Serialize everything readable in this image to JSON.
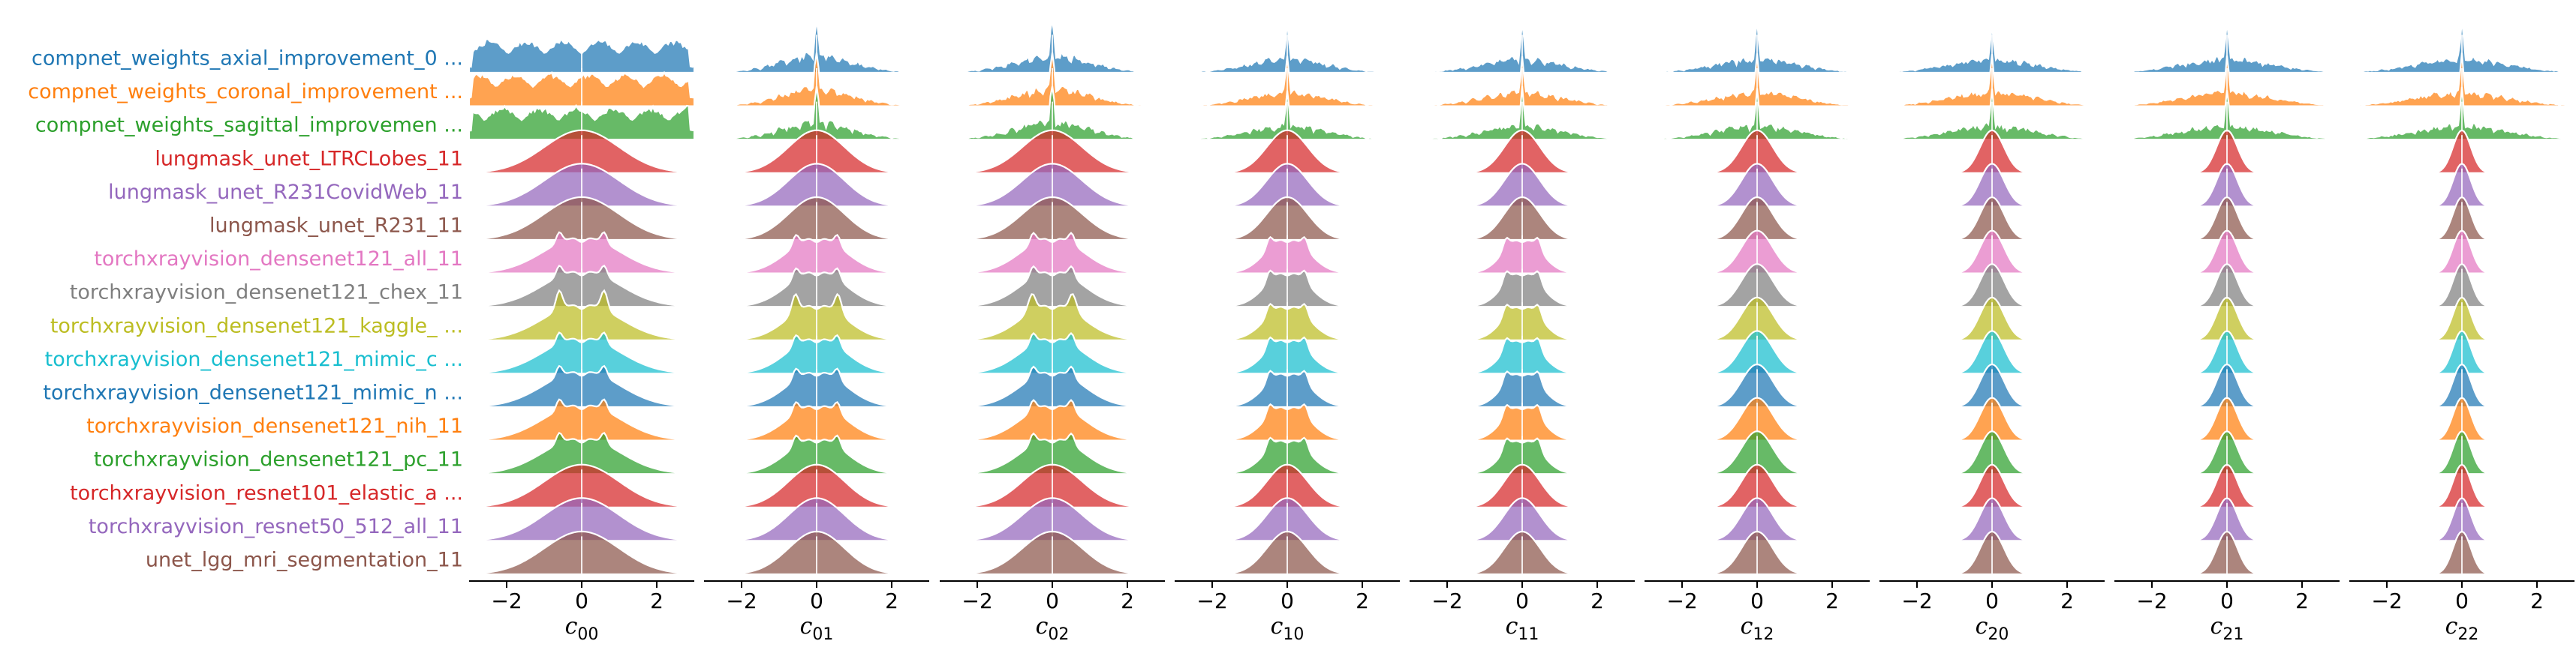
{
  "chart_data": {
    "type": "ridgeline",
    "xlim": [
      -3,
      3
    ],
    "x_ticks": [
      -2,
      0,
      2
    ],
    "x_tick_labels": [
      "−2",
      "0",
      "2"
    ],
    "panels": [
      {
        "symbol": "c",
        "sub": "00"
      },
      {
        "symbol": "c",
        "sub": "01"
      },
      {
        "symbol": "c",
        "sub": "02"
      },
      {
        "symbol": "c",
        "sub": "10"
      },
      {
        "symbol": "c",
        "sub": "11"
      },
      {
        "symbol": "c",
        "sub": "12"
      },
      {
        "symbol": "c",
        "sub": "20"
      },
      {
        "symbol": "c",
        "sub": "21"
      },
      {
        "symbol": "c",
        "sub": "22"
      }
    ],
    "series": [
      {
        "name": "compnet_weights_axial_improvement_0 ...",
        "color": "#1f77b4"
      },
      {
        "name": "compnet_weights_coronal_improvement ...",
        "color": "#ff7f0e"
      },
      {
        "name": "compnet_weights_sagittal_improvemen ...",
        "color": "#2ca02c"
      },
      {
        "name": "lungmask_unet_LTRCLobes_11",
        "color": "#d62728"
      },
      {
        "name": "lungmask_unet_R231CovidWeb_11",
        "color": "#9467bd"
      },
      {
        "name": "lungmask_unet_R231_11",
        "color": "#8c564b"
      },
      {
        "name": "torchxrayvision_densenet121_all_11",
        "color": "#e377c2"
      },
      {
        "name": "torchxrayvision_densenet121_chex_11",
        "color": "#7f7f7f"
      },
      {
        "name": "torchxrayvision_densenet121_kaggle_ ...",
        "color": "#bcbd22"
      },
      {
        "name": "torchxrayvision_densenet121_mimic_c ...",
        "color": "#17becf"
      },
      {
        "name": "torchxrayvision_densenet121_mimic_n ...",
        "color": "#1f77b4"
      },
      {
        "name": "torchxrayvision_densenet121_nih_11",
        "color": "#ff7f0e"
      },
      {
        "name": "torchxrayvision_densenet121_pc_11",
        "color": "#2ca02c"
      },
      {
        "name": "torchxrayvision_resnet101_elastic_a ...",
        "color": "#d62728"
      },
      {
        "name": "torchxrayvision_resnet50_512_all_11",
        "color": "#9467bd"
      },
      {
        "name": "unet_lgg_mri_segmentation_11",
        "color": "#8c564b"
      }
    ]
  }
}
